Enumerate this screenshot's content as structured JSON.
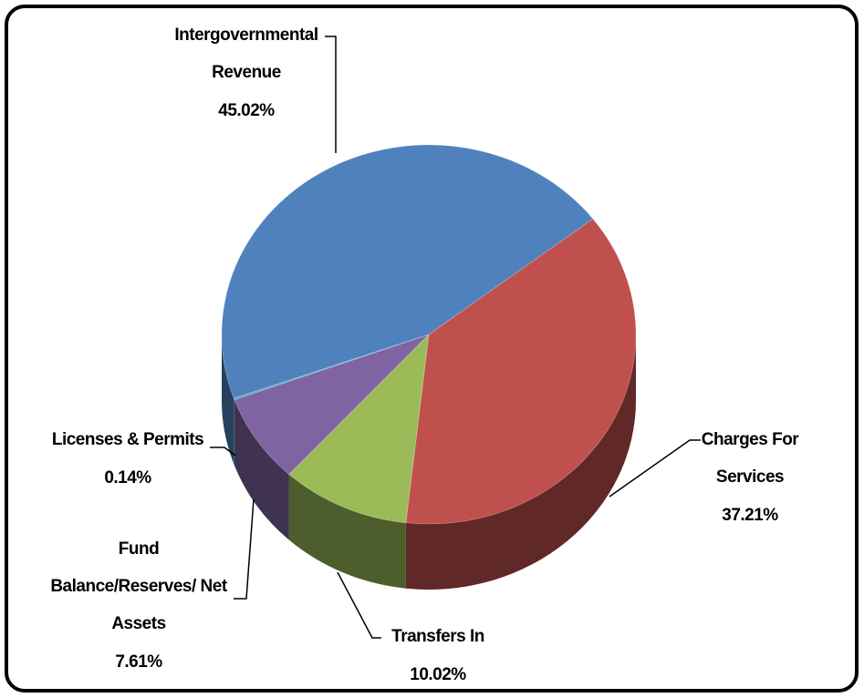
{
  "chart_data": {
    "type": "pie",
    "categories": [
      "Charges For Services",
      "Transfers In",
      "Fund Balance/Reserves/ Net Assets",
      "Licenses & Permits",
      "Intergovernmental Revenue"
    ],
    "values": [
      37.21,
      10.02,
      7.61,
      0.14,
      45.02
    ],
    "value_labels": [
      "37.21%",
      "10.02%",
      "7.61%",
      "0.14%",
      "45.02%"
    ],
    "colors": [
      "#c0504d",
      "#9bbb59",
      "#8064a2",
      "#4bacc6",
      "#4f81bd"
    ]
  }
}
